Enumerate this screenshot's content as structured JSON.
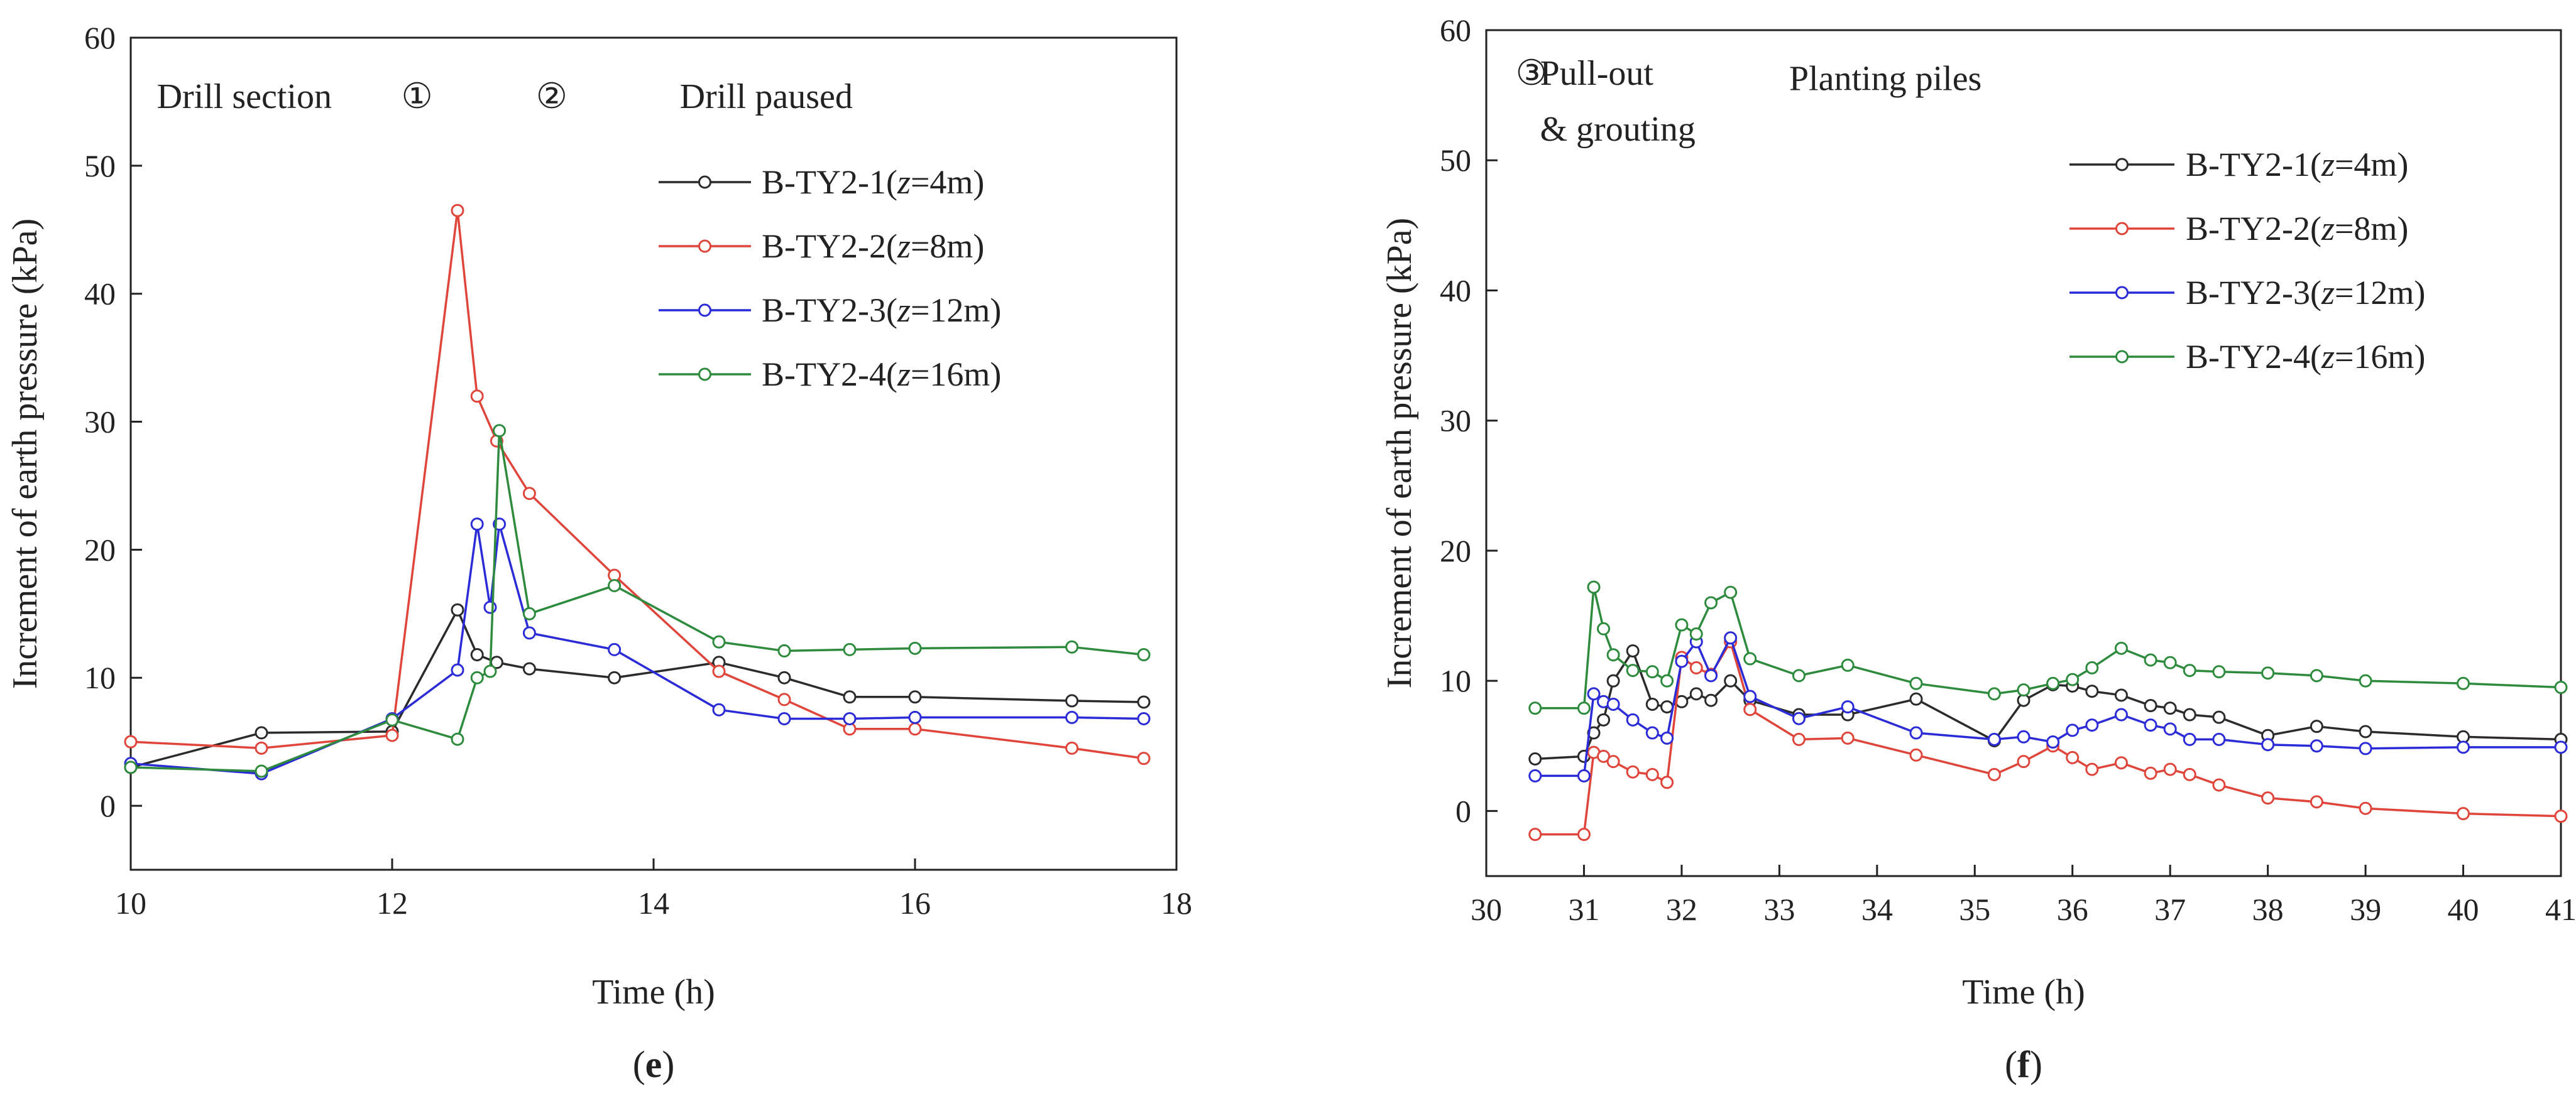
{
  "chart_data": [
    {
      "type": "line",
      "panel_label": "e",
      "xlabel": "Time (h)",
      "ylabel": "Increment of earth pressure (kPa)",
      "xlim": [
        10,
        18
      ],
      "ylim": [
        -5,
        60
      ],
      "xticks": [
        10,
        12,
        14,
        16,
        18
      ],
      "yticks": [
        0,
        10,
        20,
        30,
        40,
        50,
        60
      ],
      "grid": false,
      "legend_position": "top-right",
      "annotations": [
        {
          "text": "Drill section",
          "x": 10.2,
          "y": 54.5
        },
        {
          "text": "①",
          "x": 12.07,
          "y": 54.5
        },
        {
          "text": "②",
          "x": 13.1,
          "y": 54.5
        },
        {
          "text": "Drill paused",
          "x": 14.2,
          "y": 54.5
        }
      ],
      "series": [
        {
          "name": "B-TY2-1(z=4m)",
          "prefix": "B-TY2-1(",
          "var": "z",
          "suffix": "=4m)",
          "color": "#2b2b2b",
          "x": [
            10,
            11,
            12,
            12.5,
            12.65,
            12.8,
            13.05,
            13.7,
            14.5,
            15.0,
            15.5,
            16.0,
            17.2,
            17.75
          ],
          "y": [
            3,
            5.7,
            5.8,
            15.3,
            11.8,
            11.2,
            10.7,
            10,
            11.2,
            10,
            8.5,
            8.5,
            8.2,
            8.1
          ]
        },
        {
          "name": "B-TY2-2(z=8m)",
          "prefix": "B-TY2-2(",
          "var": "z",
          "suffix": "=8m)",
          "color": "#e0453b",
          "x": [
            10,
            11,
            12,
            12.5,
            12.65,
            12.8,
            13.05,
            13.7,
            14.5,
            15.0,
            15.5,
            16.0,
            17.2,
            17.75
          ],
          "y": [
            5,
            4.5,
            5.5,
            46.5,
            32,
            28.5,
            24.4,
            18,
            10.5,
            8.3,
            6,
            6,
            4.5,
            3.7
          ]
        },
        {
          "name": "B-TY2-3(z=12m)",
          "prefix": "B-TY2-3(",
          "var": "z",
          "suffix": "=12m)",
          "color": "#2b2bd8",
          "x": [
            10,
            11,
            12,
            12.5,
            12.65,
            12.75,
            12.82,
            13.05,
            13.7,
            14.5,
            15.0,
            15.5,
            16.0,
            17.2,
            17.75
          ],
          "y": [
            3.3,
            2.5,
            6.8,
            10.6,
            22,
            15.5,
            22,
            13.5,
            12.2,
            7.5,
            6.8,
            6.8,
            6.9,
            6.9,
            6.8
          ]
        },
        {
          "name": "B-TY2-4(z=16m)",
          "prefix": "B-TY2-4(",
          "var": "z",
          "suffix": "=16m)",
          "color": "#2e8b3e",
          "x": [
            10,
            11,
            12,
            12.5,
            12.65,
            12.75,
            12.82,
            13.05,
            13.7,
            14.5,
            15.0,
            15.5,
            16.0,
            17.2,
            17.75
          ],
          "y": [
            3,
            2.7,
            6.7,
            5.2,
            10,
            10.5,
            29.3,
            15,
            17.2,
            12.8,
            12.1,
            12.2,
            12.3,
            12.4,
            11.8
          ]
        }
      ]
    },
    {
      "type": "line",
      "panel_label": "f",
      "xlabel": "Time (h)",
      "ylabel": "Increment of earth pressure (kPa)",
      "xlim": [
        30,
        41
      ],
      "ylim": [
        -5,
        60
      ],
      "xticks": [
        30,
        31,
        32,
        33,
        34,
        35,
        36,
        37,
        38,
        39,
        40,
        41
      ],
      "yticks": [
        0,
        10,
        20,
        30,
        40,
        50,
        60
      ],
      "grid": false,
      "legend_position": "top-right",
      "annotations": [
        {
          "text": "③",
          "x": 30.3,
          "y": 55.8
        },
        {
          "text": "Pull-out",
          "x": 30.55,
          "y": 55.8
        },
        {
          "text": "& grouting",
          "x": 30.55,
          "y": 51.5
        },
        {
          "text": "Planting piles",
          "x": 33.1,
          "y": 55.4
        }
      ],
      "series": [
        {
          "name": "B-TY2-1(z=4m)",
          "prefix": "B-TY2-1(",
          "var": "z",
          "suffix": "=4m)",
          "color": "#2b2b2b",
          "x": [
            30.5,
            31.0,
            31.1,
            31.2,
            31.3,
            31.5,
            31.7,
            31.85,
            32.0,
            32.15,
            32.3,
            32.5,
            32.7,
            33.2,
            33.7,
            34.4,
            35.2,
            35.5,
            35.8,
            36.0,
            36.2,
            36.5,
            36.8,
            37.0,
            37.2,
            37.5,
            38.0,
            38.5,
            39.0,
            40.0,
            41.0
          ],
          "y": [
            4,
            4.2,
            6,
            7,
            10,
            12.3,
            8.2,
            8,
            8.4,
            9,
            8.5,
            10,
            8.5,
            7.4,
            7.4,
            8.6,
            5.4,
            8.5,
            9.7,
            9.6,
            9.2,
            8.9,
            8.1,
            7.9,
            7.4,
            7.2,
            5.8,
            6.5,
            6.1,
            5.7,
            5.5
          ]
        },
        {
          "name": "B-TY2-2(z=8m)",
          "prefix": "B-TY2-2(",
          "var": "z",
          "suffix": "=8m)",
          "color": "#e0453b",
          "x": [
            30.5,
            31.0,
            31.1,
            31.2,
            31.3,
            31.5,
            31.7,
            31.85,
            32.0,
            32.15,
            32.3,
            32.5,
            32.7,
            33.2,
            33.7,
            34.4,
            35.2,
            35.5,
            35.8,
            36.0,
            36.2,
            36.5,
            36.8,
            37.0,
            37.2,
            37.5,
            38.0,
            38.5,
            39.0,
            40.0,
            41.0
          ],
          "y": [
            -1.8,
            -1.8,
            4.5,
            4.2,
            3.8,
            3,
            2.8,
            2.2,
            11.8,
            11,
            10.5,
            13,
            7.8,
            5.5,
            5.6,
            4.3,
            2.8,
            3.8,
            5,
            4.1,
            3.2,
            3.7,
            2.9,
            3.2,
            2.8,
            2,
            1,
            0.7,
            0.2,
            -0.2,
            -0.4
          ]
        },
        {
          "name": "B-TY2-3(z=12m)",
          "prefix": "B-TY2-3(",
          "var": "z",
          "suffix": "=12m)",
          "color": "#2b2bd8",
          "x": [
            30.5,
            31.0,
            31.1,
            31.2,
            31.3,
            31.5,
            31.7,
            31.85,
            32.0,
            32.15,
            32.3,
            32.5,
            32.7,
            33.2,
            33.7,
            34.4,
            35.2,
            35.5,
            35.8,
            36.0,
            36.2,
            36.5,
            36.8,
            37.0,
            37.2,
            37.5,
            38.0,
            38.5,
            39.0,
            40.0,
            41.0
          ],
          "y": [
            2.7,
            2.7,
            9,
            8.4,
            8.2,
            7,
            6,
            5.6,
            11.5,
            13,
            10.4,
            13.3,
            8.8,
            7.1,
            8.0,
            6,
            5.5,
            5.7,
            5.3,
            6.2,
            6.6,
            7.4,
            6.6,
            6.3,
            5.5,
            5.5,
            5.1,
            5.0,
            4.8,
            4.9,
            4.9
          ]
        },
        {
          "name": "B-TY2-4(z=16m)",
          "prefix": "B-TY2-4(",
          "var": "z",
          "suffix": "=16m)",
          "color": "#2e8b3e",
          "x": [
            30.5,
            31.0,
            31.1,
            31.2,
            31.3,
            31.5,
            31.7,
            31.85,
            32.0,
            32.15,
            32.3,
            32.5,
            32.7,
            33.2,
            33.7,
            34.4,
            35.2,
            35.5,
            35.8,
            36.0,
            36.2,
            36.5,
            36.8,
            37.0,
            37.2,
            37.5,
            38.0,
            38.5,
            39.0,
            40.0,
            41.0
          ],
          "y": [
            7.9,
            7.9,
            17.2,
            14,
            12,
            10.8,
            10.7,
            10,
            14.3,
            13.6,
            16,
            16.8,
            11.7,
            10.4,
            11.2,
            9.8,
            9.0,
            9.3,
            9.8,
            10.1,
            11.0,
            12.5,
            11.6,
            11.4,
            10.8,
            10.7,
            10.6,
            10.4,
            10.0,
            9.8,
            9.5
          ]
        }
      ]
    }
  ]
}
